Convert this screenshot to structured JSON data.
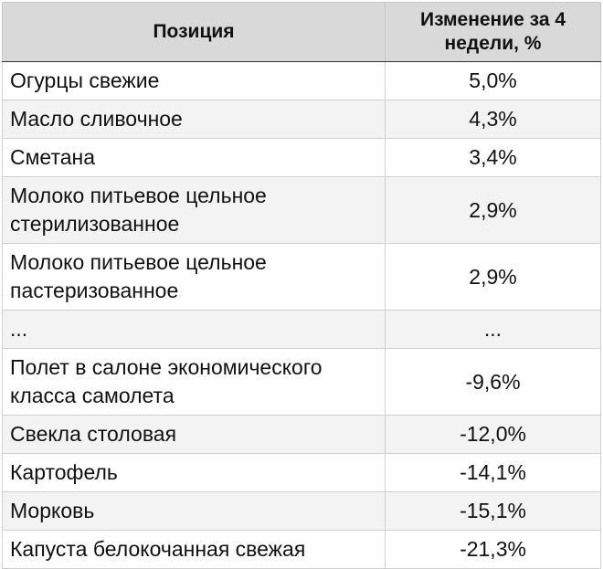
{
  "table": {
    "header": [
      "Позиция",
      "Изменение за 4 недели, %"
    ],
    "rows": [
      [
        "Огурцы свежие",
        "5,0%"
      ],
      [
        "Масло сливочное",
        "4,3%"
      ],
      [
        "Сметана",
        "3,4%"
      ],
      [
        "Молоко питьевое цельное стерилизованное",
        "2,9%"
      ],
      [
        "Молоко питьевое цельное пастеризованное",
        "2,9%"
      ],
      [
        "...",
        "..."
      ],
      [
        "Полет в салоне экономического класса самолета",
        "-9,6%"
      ],
      [
        "Свекла столовая",
        "-12,0%"
      ],
      [
        "Картофель",
        "-14,1%"
      ],
      [
        "Морковь",
        "-15,1%"
      ],
      [
        "Капуста белокочанная свежая",
        "-21,3%"
      ]
    ]
  }
}
